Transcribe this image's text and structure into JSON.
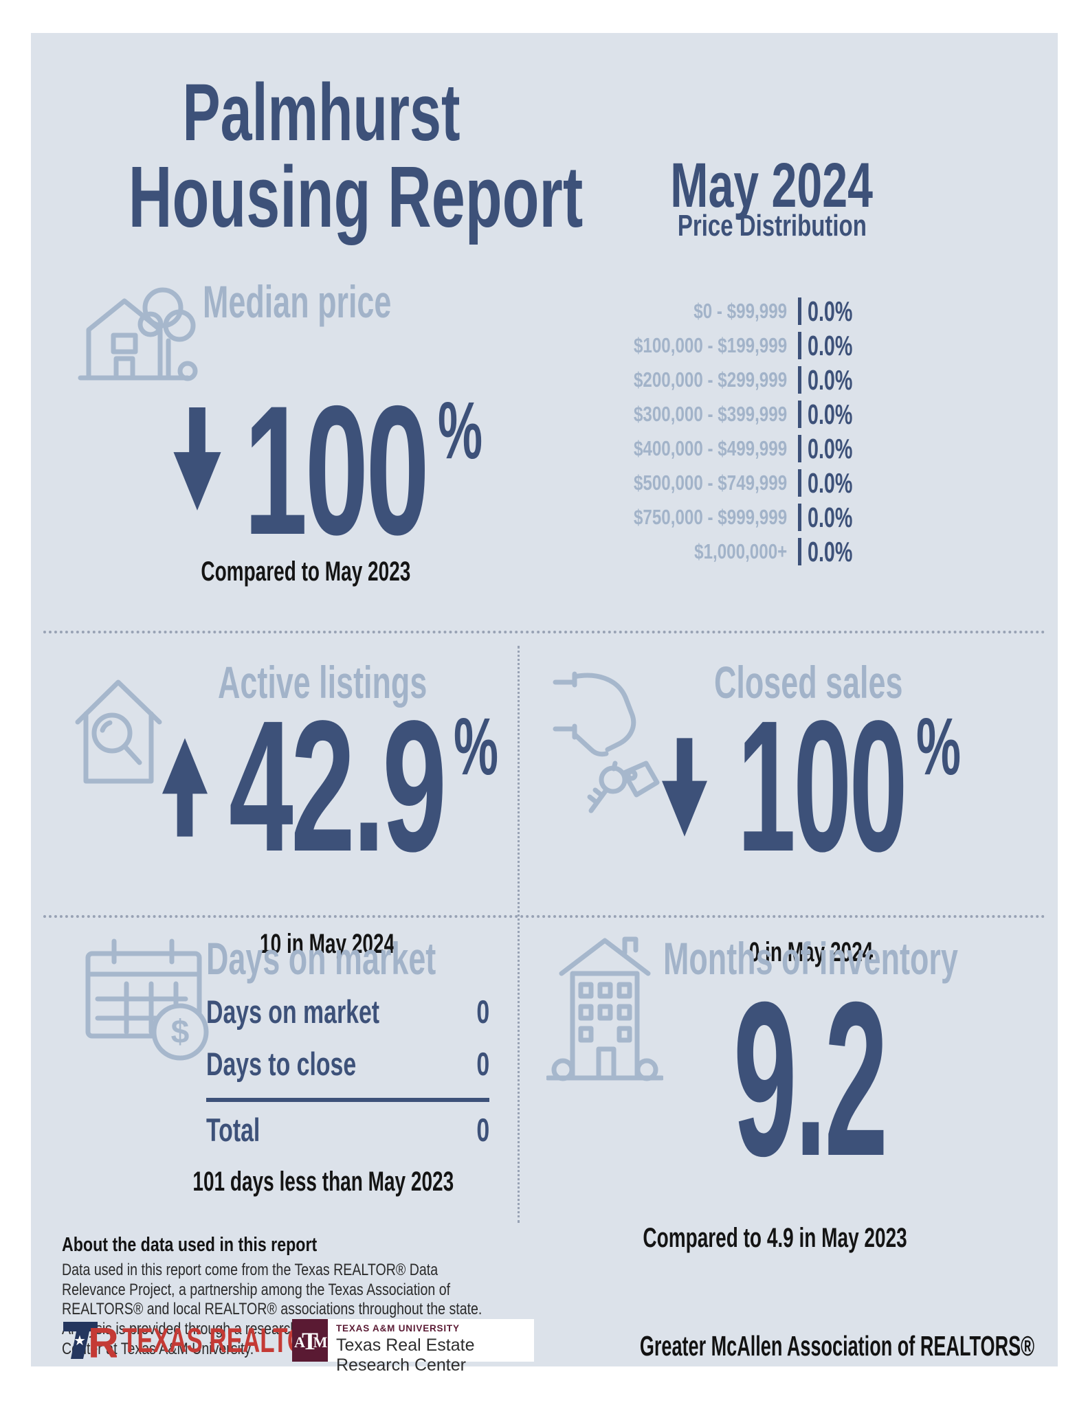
{
  "colors": {
    "navy": "#3d5179",
    "light_blue_icons": "#a6b7cc",
    "card_background": "#dce2ea",
    "black_text": "#141414",
    "texas_realtors_red": "#c43a35",
    "tamu_maroon": "#5a1a33"
  },
  "report": {
    "title_line1": "Palmhurst",
    "title_line2": "Housing Report",
    "period": "May 2024"
  },
  "price_distribution": {
    "title": "Price Distribution",
    "rows": [
      {
        "range": "$0 - $99,999",
        "value": "0.0%"
      },
      {
        "range": "$100,000 - $199,999",
        "value": "0.0%"
      },
      {
        "range": "$200,000 - $299,999",
        "value": "0.0%"
      },
      {
        "range": "$300,000 - $399,999",
        "value": "0.0%"
      },
      {
        "range": "$400,000 - $499,999",
        "value": "0.0%"
      },
      {
        "range": "$500,000 - $749,999",
        "value": "0.0%"
      },
      {
        "range": "$750,000 - $999,999",
        "value": "0.0%"
      },
      {
        "range": "$1,000,000+",
        "value": "0.0%"
      }
    ]
  },
  "median_price": {
    "label": "Median price",
    "icon": "house-with-tree-icon",
    "direction": "down",
    "value": "100",
    "percent_sign": "%",
    "note": "Compared to May 2023"
  },
  "active_listings": {
    "label": "Active listings",
    "icon": "house-with-magnifier-icon",
    "direction": "up",
    "value": "42.9",
    "percent_sign": "%",
    "note": "10 in May 2024"
  },
  "closed_sales": {
    "label": "Closed sales",
    "icon": "hand-with-keys-icon",
    "direction": "down",
    "value": "100",
    "percent_sign": "%",
    "note": "0 in May 2024"
  },
  "days_on_market": {
    "heading": "Days on market",
    "icon": "calendar-with-dollar-icon",
    "rows": [
      {
        "label": "Days on market",
        "value": "0"
      },
      {
        "label": "Days to close",
        "value": "0"
      }
    ],
    "total_label": "Total",
    "total_value": "0",
    "note": "101 days less than May 2023"
  },
  "months_of_inventory": {
    "heading": "Months of inventory",
    "icon": "apartment-building-icon",
    "value": "9.2",
    "note": "Compared to 4.9 in May 2023"
  },
  "about": {
    "heading": "About the data used in this report",
    "body": "Data used in this report come from the Texas REALTOR® Data Relevance Project, a partnership among the Texas Association of REALTORS® and local REALTOR® associations throughout the state. Analysis is provided through a research agreement with the Real Estate Center at Texas A&M University."
  },
  "footer": {
    "texas_realtors": "TEXAS REALTORS",
    "registered_mark": "®",
    "tamu_university": "TEXAS A&M UNIVERSITY",
    "tamu_center": "Texas Real Estate Research Center",
    "association": "Greater McAllen Association of REALTORS®"
  }
}
